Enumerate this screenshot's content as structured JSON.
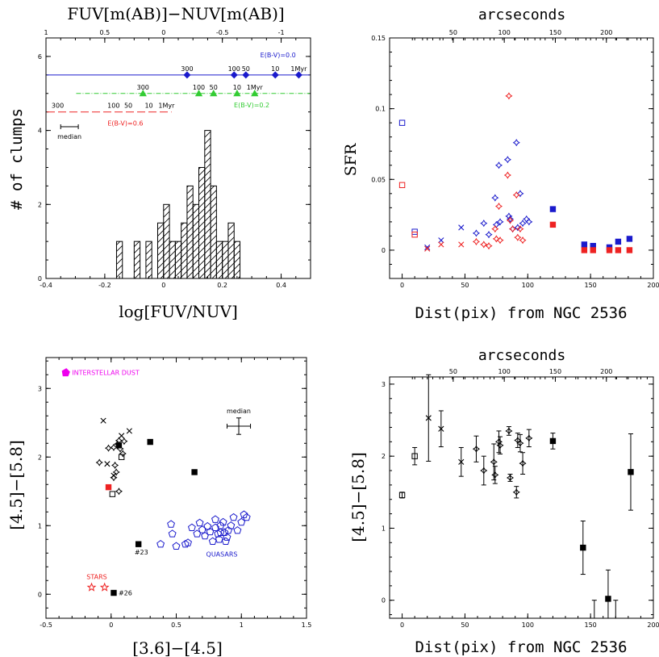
{
  "chart_data": [
    {
      "panel": "histogram",
      "type": "bar",
      "xlabel": "log[FUV/NUV]",
      "ylabel": "# of clumps",
      "top_axis_label": "FUV[m(AB)]−NUV[m(AB)]",
      "xlim": [
        -0.4,
        0.5
      ],
      "ylim": [
        0,
        6.5
      ],
      "x_ticks": [
        "-0.4",
        "-0.2",
        "0",
        "0.2",
        "0.4"
      ],
      "y_ticks": [
        "0",
        "2",
        "4",
        "6"
      ],
      "top_ticks": [
        "1",
        "0.5",
        "0",
        "-0.5",
        "-1"
      ],
      "bins": [
        {
          "x0": -0.16,
          "x1": -0.14,
          "count": 1
        },
        {
          "x0": -0.1,
          "x1": -0.08,
          "count": 1
        },
        {
          "x0": -0.06,
          "x1": -0.04,
          "count": 1
        },
        {
          "x0": -0.02,
          "x1": 0.0,
          "count": 1.5
        },
        {
          "x0": 0.0,
          "x1": 0.02,
          "count": 2
        },
        {
          "x0": 0.02,
          "x1": 0.04,
          "count": 1
        },
        {
          "x0": 0.04,
          "x1": 0.06,
          "count": 1
        },
        {
          "x0": 0.06,
          "x1": 0.08,
          "count": 1.5
        },
        {
          "x0": 0.08,
          "x1": 0.1,
          "count": 2.5
        },
        {
          "x0": 0.1,
          "x1": 0.12,
          "count": 2
        },
        {
          "x0": 0.12,
          "x1": 0.14,
          "count": 3
        },
        {
          "x0": 0.14,
          "x1": 0.16,
          "count": 4
        },
        {
          "x0": 0.16,
          "x1": 0.18,
          "count": 2.5
        },
        {
          "x0": 0.18,
          "x1": 0.2,
          "count": 1
        },
        {
          "x0": 0.2,
          "x1": 0.22,
          "count": 1
        },
        {
          "x0": 0.22,
          "x1": 0.24,
          "count": 1.5
        },
        {
          "x0": 0.24,
          "x1": 0.26,
          "count": 1
        }
      ],
      "tracks": [
        {
          "label": "E(B-V)=0.0",
          "color": "#1a1acc",
          "marker": "diamond",
          "dash": "solid",
          "y": 5.5,
          "line_x": [
            -0.4,
            0.5
          ],
          "points": [
            {
              "x": 0.08,
              "age": "300"
            },
            {
              "x": 0.24,
              "age": "100"
            },
            {
              "x": 0.28,
              "age": "50"
            },
            {
              "x": 0.38,
              "age": "10"
            },
            {
              "x": 0.46,
              "age": "1Myr"
            }
          ]
        },
        {
          "label": "E(B-V)=0.2",
          "color": "#33cc33",
          "marker": "triangle",
          "dash": "dashdot",
          "y": 5.0,
          "line_x": [
            -0.3,
            0.5
          ],
          "points": [
            {
              "x": -0.07,
              "age": "300"
            },
            {
              "x": 0.12,
              "age": "100"
            },
            {
              "x": 0.17,
              "age": "50"
            },
            {
              "x": 0.25,
              "age": "10"
            },
            {
              "x": 0.31,
              "age": "1Myr"
            }
          ]
        },
        {
          "label": "E(B-V)=0.6",
          "color": "#ee2222",
          "marker": "square",
          "dash": "longdash",
          "y": 4.5,
          "line_x": [
            -0.4,
            0.03
          ],
          "points": [
            {
              "x": -0.36,
              "age": "300"
            },
            {
              "x": -0.17,
              "age": "100"
            },
            {
              "x": -0.12,
              "age": "50"
            },
            {
              "x": -0.05,
              "age": "10"
            },
            {
              "x": 0.01,
              "age": "1Myr"
            }
          ]
        }
      ],
      "median_label": "median",
      "median": {
        "x": -0.32,
        "y": 4.1,
        "half_width": 0.03
      }
    },
    {
      "panel": "sfr",
      "type": "scatter",
      "xlabel": "Dist(pix) from NGC 2536",
      "ylabel": "SFR",
      "top_axis_label": "arcseconds",
      "xlim": [
        -10,
        200
      ],
      "ylim": [
        -0.02,
        0.15
      ],
      "x_ticks": [
        "0",
        "50",
        "100",
        "150",
        "200"
      ],
      "y_ticks": [
        "0",
        "0.05",
        "0.1",
        "0.15"
      ],
      "top_ticks": [
        "50",
        "100",
        "150",
        "200"
      ],
      "series": [
        {
          "color": "#1a1acc",
          "points": [
            {
              "x": 0,
              "y": 0.09,
              "m": "open-square"
            },
            {
              "x": 10,
              "y": 0.013,
              "m": "open-square"
            },
            {
              "x": 20,
              "y": 0.002,
              "m": "x"
            },
            {
              "x": 31,
              "y": 0.007,
              "m": "x"
            },
            {
              "x": 47,
              "y": 0.016,
              "m": "x"
            },
            {
              "x": 59,
              "y": 0.012,
              "m": "star"
            },
            {
              "x": 65,
              "y": 0.019,
              "m": "star"
            },
            {
              "x": 69,
              "y": 0.011,
              "m": "star"
            },
            {
              "x": 74,
              "y": 0.037,
              "m": "star"
            },
            {
              "x": 75,
              "y": 0.018,
              "m": "star"
            },
            {
              "x": 77,
              "y": 0.06,
              "m": "star"
            },
            {
              "x": 78,
              "y": 0.02,
              "m": "star"
            },
            {
              "x": 84,
              "y": 0.064,
              "m": "star"
            },
            {
              "x": 85,
              "y": 0.024,
              "m": "star"
            },
            {
              "x": 86,
              "y": 0.022,
              "m": "star"
            },
            {
              "x": 88,
              "y": 0.015,
              "m": "star"
            },
            {
              "x": 91,
              "y": 0.076,
              "m": "star"
            },
            {
              "x": 92,
              "y": 0.016,
              "m": "star"
            },
            {
              "x": 94,
              "y": 0.04,
              "m": "star"
            },
            {
              "x": 96,
              "y": 0.019,
              "m": "star"
            },
            {
              "x": 99,
              "y": 0.022,
              "m": "star"
            },
            {
              "x": 101,
              "y": 0.02,
              "m": "star"
            },
            {
              "x": 120,
              "y": 0.029,
              "m": "filled-square"
            },
            {
              "x": 145,
              "y": 0.004,
              "m": "filled-square"
            },
            {
              "x": 152,
              "y": 0.003,
              "m": "filled-square"
            },
            {
              "x": 165,
              "y": 0.002,
              "m": "filled-square"
            },
            {
              "x": 172,
              "y": 0.006,
              "m": "filled-square"
            },
            {
              "x": 181,
              "y": 0.008,
              "m": "filled-square"
            }
          ]
        },
        {
          "color": "#ee2222",
          "points": [
            {
              "x": 0,
              "y": 0.046,
              "m": "open-square"
            },
            {
              "x": 10,
              "y": 0.011,
              "m": "open-square"
            },
            {
              "x": 20,
              "y": 0.001,
              "m": "x"
            },
            {
              "x": 31,
              "y": 0.004,
              "m": "x"
            },
            {
              "x": 47,
              "y": 0.004,
              "m": "x"
            },
            {
              "x": 59,
              "y": 0.006,
              "m": "star"
            },
            {
              "x": 65,
              "y": 0.004,
              "m": "star"
            },
            {
              "x": 69,
              "y": 0.003,
              "m": "star"
            },
            {
              "x": 74,
              "y": 0.015,
              "m": "star"
            },
            {
              "x": 75,
              "y": 0.008,
              "m": "star"
            },
            {
              "x": 77,
              "y": 0.031,
              "m": "star"
            },
            {
              "x": 78,
              "y": 0.007,
              "m": "star"
            },
            {
              "x": 84,
              "y": 0.053,
              "m": "star"
            },
            {
              "x": 85,
              "y": 0.109,
              "m": "star"
            },
            {
              "x": 86,
              "y": 0.021,
              "m": "star"
            },
            {
              "x": 88,
              "y": 0.015,
              "m": "star"
            },
            {
              "x": 91,
              "y": 0.039,
              "m": "star"
            },
            {
              "x": 92,
              "y": 0.009,
              "m": "star"
            },
            {
              "x": 94,
              "y": 0.015,
              "m": "star"
            },
            {
              "x": 96,
              "y": 0.007,
              "m": "star"
            },
            {
              "x": 120,
              "y": 0.018,
              "m": "filled-square"
            },
            {
              "x": 145,
              "y": 0.0,
              "m": "filled-square"
            },
            {
              "x": 152,
              "y": 0.0,
              "m": "filled-square"
            },
            {
              "x": 165,
              "y": 0.0,
              "m": "filled-square"
            },
            {
              "x": 172,
              "y": 0.0,
              "m": "filled-square"
            },
            {
              "x": 181,
              "y": 0.0,
              "m": "filled-square"
            }
          ]
        }
      ]
    },
    {
      "panel": "color-color",
      "type": "scatter",
      "xlabel": "[3.6]−[4.5]",
      "ylabel": "[4.5]−[5.8]",
      "xlim": [
        -0.5,
        1.5
      ],
      "ylim": [
        -0.35,
        3.45
      ],
      "x_ticks": [
        "-0.5",
        "0",
        "0.5",
        "1",
        "1.5"
      ],
      "y_ticks": [
        "0",
        "1",
        "2",
        "3"
      ],
      "labels": {
        "dust": "INTERSTELLAR DUST",
        "quasars": "QUASARS",
        "stars": "STARS",
        "median": "median",
        "c23": "#23",
        "c26": "#26"
      },
      "colors": {
        "dust": "#ee00ee",
        "quasars": "#1a1acc",
        "stars": "#ee2222",
        "clumps": "#000000"
      },
      "dust": {
        "x": -0.35,
        "y": 3.23
      },
      "stars": [
        {
          "x": -0.15,
          "y": 0.1
        },
        {
          "x": -0.05,
          "y": 0.1
        }
      ],
      "median": {
        "x": 0.98,
        "y": 2.45,
        "xerr": 0.09,
        "yerr": 0.12
      },
      "quasars": [
        {
          "x": 0.38,
          "y": 0.73
        },
        {
          "x": 0.46,
          "y": 1.02
        },
        {
          "x": 0.47,
          "y": 0.88
        },
        {
          "x": 0.5,
          "y": 0.7
        },
        {
          "x": 0.57,
          "y": 0.73
        },
        {
          "x": 0.59,
          "y": 0.75
        },
        {
          "x": 0.62,
          "y": 0.97
        },
        {
          "x": 0.66,
          "y": 0.88
        },
        {
          "x": 0.68,
          "y": 1.04
        },
        {
          "x": 0.7,
          "y": 0.94
        },
        {
          "x": 0.72,
          "y": 0.85
        },
        {
          "x": 0.74,
          "y": 0.99
        },
        {
          "x": 0.76,
          "y": 0.91
        },
        {
          "x": 0.78,
          "y": 0.77
        },
        {
          "x": 0.8,
          "y": 0.97
        },
        {
          "x": 0.8,
          "y": 1.09
        },
        {
          "x": 0.82,
          "y": 0.88
        },
        {
          "x": 0.83,
          "y": 0.8
        },
        {
          "x": 0.84,
          "y": 0.9
        },
        {
          "x": 0.86,
          "y": 1.05
        },
        {
          "x": 0.87,
          "y": 0.9
        },
        {
          "x": 0.88,
          "y": 0.77
        },
        {
          "x": 0.9,
          "y": 0.93
        },
        {
          "x": 0.92,
          "y": 1.0
        },
        {
          "x": 0.94,
          "y": 1.12
        },
        {
          "x": 0.97,
          "y": 0.93
        },
        {
          "x": 1.0,
          "y": 1.05
        },
        {
          "x": 1.02,
          "y": 1.16
        },
        {
          "x": 1.04,
          "y": 1.12
        },
        {
          "x": 0.89,
          "y": 0.83
        },
        {
          "x": 0.84,
          "y": 1.0
        }
      ],
      "clumps": [
        {
          "x": -0.06,
          "y": 2.53,
          "m": "x"
        },
        {
          "x": 0.08,
          "y": 2.31,
          "m": "x"
        },
        {
          "x": 0.14,
          "y": 2.38,
          "m": "x"
        },
        {
          "x": -0.03,
          "y": 1.9,
          "m": "x"
        },
        {
          "x": 0.02,
          "y": 1.73,
          "m": "x"
        },
        {
          "x": -0.09,
          "y": 1.92,
          "m": "star"
        },
        {
          "x": -0.02,
          "y": 2.13,
          "m": "star"
        },
        {
          "x": 0.02,
          "y": 2.14,
          "m": "star"
        },
        {
          "x": 0.03,
          "y": 1.88,
          "m": "star"
        },
        {
          "x": 0.04,
          "y": 1.78,
          "m": "star"
        },
        {
          "x": 0.05,
          "y": 2.19,
          "m": "star"
        },
        {
          "x": 0.06,
          "y": 2.24,
          "m": "star"
        },
        {
          "x": 0.07,
          "y": 2.12,
          "m": "star"
        },
        {
          "x": 0.09,
          "y": 2.05,
          "m": "star"
        },
        {
          "x": 0.1,
          "y": 2.23,
          "m": "star"
        },
        {
          "x": 0.02,
          "y": 1.7,
          "m": "star"
        },
        {
          "x": 0.06,
          "y": 1.5,
          "m": "star"
        },
        {
          "x": 0.06,
          "y": 2.17,
          "m": "filled-square"
        },
        {
          "x": 0.3,
          "y": 2.22,
          "m": "filled-square"
        },
        {
          "x": 0.64,
          "y": 1.78,
          "m": "filled-square"
        },
        {
          "x": 0.21,
          "y": 0.73,
          "m": "filled-square"
        },
        {
          "x": 0.02,
          "y": 0.02,
          "m": "filled-square"
        },
        {
          "x": 0.08,
          "y": 2.0,
          "m": "open-square"
        },
        {
          "x": 0.01,
          "y": 1.46,
          "m": "open-square"
        }
      ],
      "red_point": {
        "x": -0.02,
        "y": 1.56
      }
    },
    {
      "panel": "color-distance",
      "type": "scatter",
      "xlabel": "Dist(pix) from NGC 2536",
      "ylabel": "[4.5]−[5.8]",
      "top_axis_label": "arcseconds",
      "xlim": [
        -10,
        200
      ],
      "ylim": [
        -0.25,
        3.1
      ],
      "x_ticks": [
        "0",
        "50",
        "100",
        "150",
        "200"
      ],
      "y_ticks": [
        "0",
        "1",
        "2",
        "3"
      ],
      "top_ticks": [
        "50",
        "100",
        "150",
        "200"
      ],
      "points": [
        {
          "x": 0,
          "y": 1.46,
          "e": 0.04,
          "m": "open-square"
        },
        {
          "x": 10,
          "y": 2.0,
          "e": 0.12,
          "m": "open-square"
        },
        {
          "x": 21,
          "y": 2.53,
          "e": 0.6,
          "m": "x"
        },
        {
          "x": 31,
          "y": 2.38,
          "e": 0.25,
          "m": "x"
        },
        {
          "x": 47,
          "y": 1.92,
          "e": 0.2,
          "m": "x"
        },
        {
          "x": 59,
          "y": 2.1,
          "e": 0.18,
          "m": "star"
        },
        {
          "x": 65,
          "y": 1.8,
          "e": 0.2,
          "m": "star"
        },
        {
          "x": 73,
          "y": 1.92,
          "e": 0.25,
          "m": "star"
        },
        {
          "x": 74,
          "y": 1.74,
          "e": 0.12,
          "m": "star"
        },
        {
          "x": 77,
          "y": 2.2,
          "e": 0.15,
          "m": "star"
        },
        {
          "x": 78,
          "y": 2.15,
          "e": 0.12,
          "m": "star"
        },
        {
          "x": 85,
          "y": 2.35,
          "e": 0.06,
          "m": "star"
        },
        {
          "x": 86,
          "y": 1.7,
          "e": 0.05,
          "m": "star"
        },
        {
          "x": 91,
          "y": 1.5,
          "e": 0.08,
          "m": "star"
        },
        {
          "x": 92,
          "y": 2.22,
          "e": 0.1,
          "m": "star"
        },
        {
          "x": 94,
          "y": 2.18,
          "e": 0.12,
          "m": "star"
        },
        {
          "x": 96,
          "y": 1.9,
          "e": 0.15,
          "m": "star"
        },
        {
          "x": 101,
          "y": 2.25,
          "e": 0.12,
          "m": "star"
        },
        {
          "x": 120,
          "y": 2.21,
          "e": 0.11,
          "m": "filled-square"
        },
        {
          "x": 144,
          "y": 0.73,
          "e": 0.37,
          "m": "filled-square"
        },
        {
          "x": 164,
          "y": 0.02,
          "e": 0.4,
          "m": "filled-square"
        },
        {
          "x": 182,
          "y": 1.78,
          "e": 0.53,
          "m": "filled-square"
        }
      ],
      "clipped_error_bars": [
        {
          "x": 153
        },
        {
          "x": 170
        }
      ]
    }
  ]
}
